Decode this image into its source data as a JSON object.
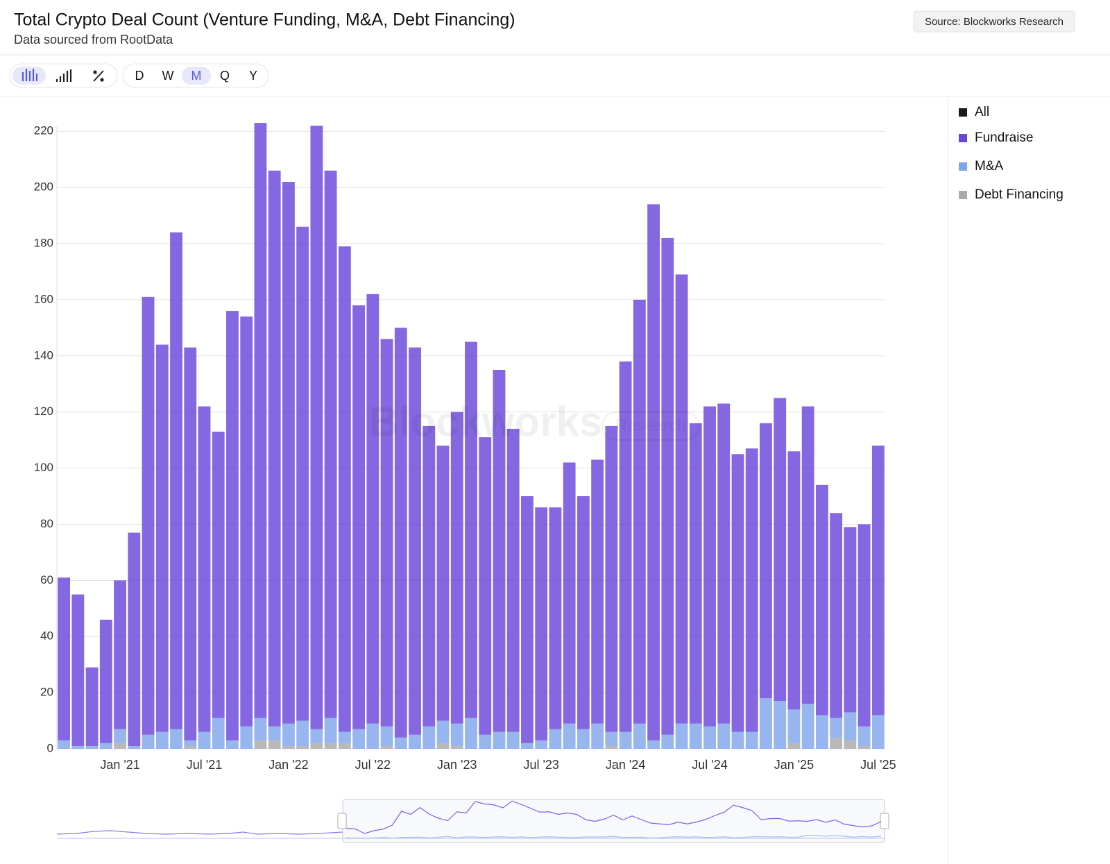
{
  "chart_data": {
    "type": "stacked_bar",
    "title": "Total Crypto Deal Count (Venture Funding, M&A, Debt Financing)",
    "subtitle": "Data sourced from RootData",
    "source": "Source: Blockworks Research",
    "watermark": [
      "Blockworks",
      "Research"
    ],
    "intervals": [
      "D",
      "W",
      "M",
      "Q",
      "Y"
    ],
    "active_interval": "M",
    "legend_extra": [
      {
        "name": "All",
        "color": "#1a1a1a"
      }
    ],
    "categories": [
      null,
      null,
      null,
      null,
      "Jan '21",
      null,
      null,
      null,
      null,
      null,
      "Jul '21",
      null,
      null,
      null,
      null,
      null,
      "Jan '22",
      null,
      null,
      null,
      null,
      null,
      "Jul '22",
      null,
      null,
      null,
      null,
      null,
      "Jan '23",
      null,
      null,
      null,
      null,
      null,
      "Jul '23",
      null,
      null,
      null,
      null,
      null,
      "Jan '24",
      null,
      null,
      null,
      null,
      null,
      "Jul '24",
      null,
      null,
      null,
      null,
      null,
      "Jan '25",
      null,
      null,
      null,
      null,
      null,
      "Jul '25"
    ],
    "series": [
      {
        "name": "Fundraise",
        "color": "#6a45da",
        "values": [
          58,
          54,
          28,
          44,
          53,
          76,
          156,
          138,
          177,
          140,
          116,
          102,
          153,
          146,
          212,
          198,
          193,
          176,
          215,
          195,
          173,
          151,
          153,
          138,
          146,
          138,
          107,
          98,
          111,
          134,
          106,
          129,
          108,
          88,
          83,
          79,
          93,
          83,
          94,
          109,
          132,
          151,
          191,
          177,
          160,
          107,
          114,
          114,
          99,
          101,
          98,
          108,
          92,
          106,
          82,
          73,
          66,
          72,
          96
        ]
      },
      {
        "name": "M&A",
        "color": "#80a5ec",
        "values": [
          3,
          1,
          1,
          2,
          5,
          1,
          5,
          6,
          7,
          2,
          6,
          11,
          3,
          8,
          8,
          5,
          8,
          9,
          5,
          9,
          4,
          7,
          9,
          7,
          4,
          5,
          8,
          8,
          8,
          11,
          5,
          6,
          6,
          2,
          3,
          7,
          9,
          7,
          9,
          5,
          6,
          9,
          3,
          5,
          9,
          9,
          8,
          9,
          6,
          6,
          18,
          17,
          12,
          16,
          12,
          7,
          10,
          7,
          12
        ]
      },
      {
        "name": "Debt Financing",
        "color": "#a9a9a9",
        "values": [
          0,
          0,
          0,
          0,
          2,
          0,
          0,
          0,
          0,
          1,
          0,
          0,
          0,
          0,
          3,
          3,
          1,
          1,
          2,
          2,
          2,
          0,
          0,
          1,
          0,
          0,
          0,
          2,
          1,
          0,
          0,
          0,
          0,
          0,
          0,
          0,
          0,
          0,
          0,
          1,
          0,
          0,
          0,
          0,
          0,
          0,
          0,
          0,
          0,
          0,
          0,
          0,
          2,
          0,
          0,
          4,
          3,
          1,
          0
        ]
      }
    ],
    "ylim": [
      0,
      225
    ],
    "yticks": [
      0,
      20,
      40,
      60,
      80,
      100,
      120,
      140,
      160,
      180,
      200,
      220
    ],
    "grid": true
  }
}
